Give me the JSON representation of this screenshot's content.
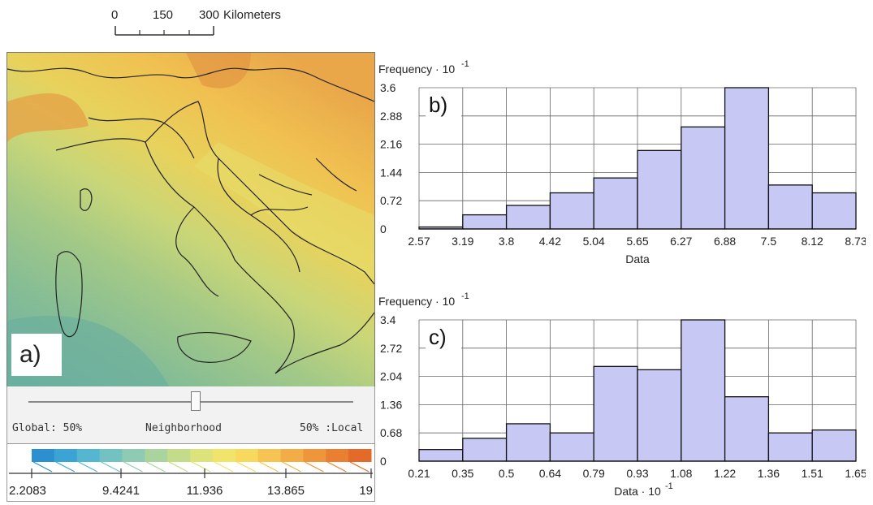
{
  "scalebar": {
    "ticks": [
      "0",
      "150",
      "300"
    ],
    "unit": "Kilometers"
  },
  "map": {
    "panel_label": "a)"
  },
  "slider": {
    "left_label": "Global: 50%",
    "center_label": "Neighborhood",
    "right_label": "50% :Local",
    "value_percent": 50
  },
  "legend": {
    "ticks": [
      "2.2083",
      "9.4241",
      "11.936",
      "13.865",
      "19"
    ],
    "colors": [
      "#2b8fd0",
      "#3aa4d4",
      "#55b6cf",
      "#72c2c2",
      "#8ecbb2",
      "#a9d49e",
      "#c3dc8a",
      "#dbe37a",
      "#f0e56a",
      "#f7d95e",
      "#f6c452",
      "#f3ad46",
      "#ef963b",
      "#ea7f31",
      "#e36a28"
    ]
  },
  "chart_data": [
    {
      "type": "bar",
      "panel": "b)",
      "ylabel": "Frequency · 10",
      "ylabel_exp": "-1",
      "xlabel": "Data",
      "xlabel_exp": "",
      "x_ticks": [
        "2.57",
        "3.19",
        "3.8",
        "4.42",
        "5.04",
        "5.65",
        "6.27",
        "6.88",
        "7.5",
        "8.12",
        "8.73"
      ],
      "y_ticks": [
        "0",
        "0.72",
        "1.44",
        "2.16",
        "2.88",
        "3.6"
      ],
      "ylim": [
        0,
        3.6
      ],
      "values": [
        0.05,
        0.36,
        0.6,
        0.92,
        1.3,
        2.0,
        2.6,
        3.6,
        1.12,
        0.92
      ],
      "bar_color": "#c8c8f4"
    },
    {
      "type": "bar",
      "panel": "c)",
      "ylabel": "Frequency · 10",
      "ylabel_exp": "-1",
      "xlabel": "Data · 10",
      "xlabel_exp": "-1",
      "x_ticks": [
        "0.21",
        "0.35",
        "0.5",
        "0.64",
        "0.79",
        "0.93",
        "1.08",
        "1.22",
        "1.36",
        "1.51",
        "1.65"
      ],
      "y_ticks": [
        "0",
        "0.68",
        "1.36",
        "2.04",
        "2.72",
        "3.4"
      ],
      "ylim": [
        0,
        3.4
      ],
      "values": [
        0.28,
        0.55,
        0.9,
        0.68,
        2.28,
        2.2,
        3.4,
        1.55,
        0.68,
        0.75
      ],
      "bar_color": "#c8c8f4"
    }
  ]
}
